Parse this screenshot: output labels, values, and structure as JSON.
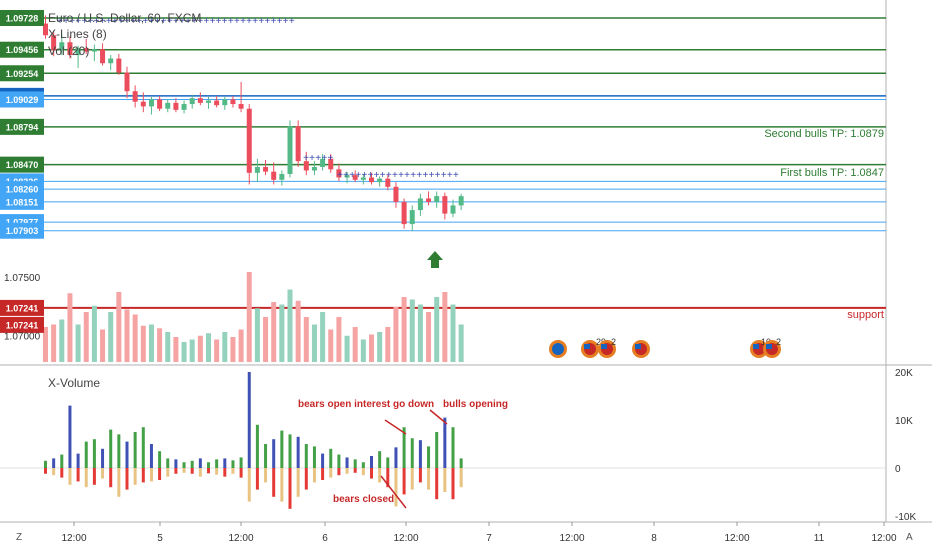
{
  "header": {
    "symbol_title": "Euro / U.S. Dollar, 60, FXCM",
    "study_xlines": "X-Lines (8)",
    "study_vol": "Vol (20)"
  },
  "price_axis": {
    "labels": [
      {
        "value": "1.09728",
        "color": "#2e7d32"
      },
      {
        "value": "1.09456",
        "color": "#2e7d32"
      },
      {
        "value": "1.09254",
        "color": "#2e7d32"
      },
      {
        "value": "1.09060",
        "color": "#1565c0"
      },
      {
        "value": "1.09029",
        "color": "#42a5f5"
      },
      {
        "value": "1.08794",
        "color": "#2e7d32"
      },
      {
        "value": "1.08470",
        "color": "#2e7d32"
      },
      {
        "value": "1.08326",
        "color": "#42a5f5"
      },
      {
        "value": "1.08260",
        "color": "#42a5f5"
      },
      {
        "value": "1.08151",
        "color": "#42a5f5"
      },
      {
        "value": "1.07977",
        "color": "#42a5f5"
      },
      {
        "value": "1.07903",
        "color": "#42a5f5"
      },
      {
        "value": "1.07500",
        "color": ""
      },
      {
        "value": "1.07241",
        "color": "#c62828"
      },
      {
        "value": "1.07241",
        "color": "#c62828"
      },
      {
        "value": "1.07000",
        "color": ""
      }
    ]
  },
  "annotations": {
    "second_bulls_tp": "Second bulls TP: 1.0879",
    "first_bulls_tp": "First bulls TP: 1.0847",
    "support": "support",
    "bears_open_interest": "bears open interest go down",
    "bulls_opening": "bulls opening",
    "bears_closed": "bears closed"
  },
  "events": [
    {
      "label": ""
    },
    {
      "label": "29"
    },
    {
      "label": "2"
    },
    {
      "label": ""
    },
    {
      "label": "10"
    },
    {
      "label": "2"
    }
  ],
  "xvolume": {
    "title": "X-Volume",
    "axis_labels": [
      "20K",
      "10K",
      "0",
      "-10K"
    ]
  },
  "time_axis": {
    "labels": [
      "12:00",
      "5",
      "12:00",
      "6",
      "12:00",
      "7",
      "12:00",
      "8",
      "12:00",
      "11",
      "12:00"
    ]
  },
  "corner": {
    "left": "Z",
    "right": "A"
  },
  "colors": {
    "bull": "#53b987",
    "bear": "#eb4d5c",
    "green_line": "#2e7d32",
    "blue_line": "#1565c0",
    "light_blue_line": "#42a5f5",
    "support_line": "#c62828",
    "vol_bull": "#94d2bd",
    "vol_bear": "#f5a3a3",
    "xv_blue": "#3f51b5",
    "xv_green": "#43a047",
    "xv_red": "#e53935",
    "xv_tan": "#e8c382",
    "annotation_red": "#c62828"
  },
  "chart_data": {
    "type": "candlestick",
    "series": [
      {
        "name": "Euro / U.S. Dollar, 60, FXCM",
        "ohlc": [
          [
            1.0968,
            1.0975,
            1.0955,
            1.0958
          ],
          [
            1.0958,
            1.0962,
            1.094,
            1.0945
          ],
          [
            1.0945,
            1.0958,
            1.0941,
            1.0952
          ],
          [
            1.0952,
            1.0957,
            1.0938,
            1.0941
          ],
          [
            1.0941,
            1.0949,
            1.093,
            1.0947
          ],
          [
            1.0947,
            1.0955,
            1.0942,
            1.0944
          ],
          [
            1.0944,
            1.095,
            1.0936,
            1.0946
          ],
          [
            1.0946,
            1.0951,
            1.0932,
            1.0934
          ],
          [
            1.0934,
            1.0941,
            1.0928,
            1.0938
          ],
          [
            1.0938,
            1.0942,
            1.0924,
            1.0926
          ],
          [
            1.0926,
            1.0931,
            1.0904,
            1.091
          ],
          [
            1.091,
            1.0915,
            1.0896,
            1.0901
          ],
          [
            1.0901,
            1.0909,
            1.0892,
            1.0897
          ],
          [
            1.0897,
            1.0905,
            1.089,
            1.0903
          ],
          [
            1.0903,
            1.0906,
            1.0893,
            1.0895
          ],
          [
            1.0895,
            1.0903,
            1.0892,
            1.09
          ],
          [
            1.09,
            1.0904,
            1.0892,
            1.0894
          ],
          [
            1.0894,
            1.0902,
            1.0891,
            1.0899
          ],
          [
            1.0899,
            1.0907,
            1.0895,
            1.0904
          ],
          [
            1.0904,
            1.0909,
            1.0898,
            1.09
          ],
          [
            1.09,
            1.0905,
            1.0895,
            1.0902
          ],
          [
            1.0902,
            1.0906,
            1.0896,
            1.0898
          ],
          [
            1.0898,
            1.0905,
            1.0894,
            1.0903
          ],
          [
            1.0903,
            1.0906,
            1.0896,
            1.0899
          ],
          [
            1.0899,
            1.0918,
            1.0892,
            1.0895
          ],
          [
            1.0895,
            1.0899,
            1.083,
            1.084
          ],
          [
            1.084,
            1.0852,
            1.0832,
            1.0845
          ],
          [
            1.0845,
            1.0851,
            1.0838,
            1.0841
          ],
          [
            1.0841,
            1.0849,
            1.083,
            1.0834
          ],
          [
            1.0834,
            1.0842,
            1.0829,
            1.0839
          ],
          [
            1.0839,
            1.0885,
            1.0836,
            1.088
          ],
          [
            1.088,
            1.0885,
            1.0845,
            1.085
          ],
          [
            1.085,
            1.0858,
            1.0838,
            1.0842
          ],
          [
            1.0842,
            1.085,
            1.0838,
            1.0845
          ],
          [
            1.0845,
            1.0856,
            1.0842,
            1.0852
          ],
          [
            1.0852,
            1.0856,
            1.084,
            1.0843
          ],
          [
            1.0843,
            1.0848,
            1.0833,
            1.0836
          ],
          [
            1.0836,
            1.0841,
            1.0831,
            1.0838
          ],
          [
            1.0838,
            1.0842,
            1.0832,
            1.0834
          ],
          [
            1.0834,
            1.0839,
            1.083,
            1.0836
          ],
          [
            1.0836,
            1.084,
            1.083,
            1.0832
          ],
          [
            1.0832,
            1.0837,
            1.0828,
            1.0835
          ],
          [
            1.0835,
            1.0838,
            1.0825,
            1.0828
          ],
          [
            1.0828,
            1.0832,
            1.081,
            1.0815
          ],
          [
            1.0815,
            1.0818,
            1.0792,
            1.0796
          ],
          [
            1.0796,
            1.0812,
            1.079,
            1.0808
          ],
          [
            1.0808,
            1.0822,
            1.0803,
            1.0818
          ],
          [
            1.0818,
            1.0824,
            1.0812,
            1.0815
          ],
          [
            1.0815,
            1.0824,
            1.081,
            1.082
          ],
          [
            1.082,
            1.0823,
            1.08,
            1.0805
          ],
          [
            1.0805,
            1.0817,
            1.0802,
            1.0812
          ],
          [
            1.0812,
            1.0822,
            1.0808,
            1.082
          ]
        ]
      }
    ],
    "price_range": [
      1.0695,
      1.0985
    ],
    "ticks": [
      "12:00",
      "5",
      "12:00",
      "6",
      "12:00",
      "7",
      "12:00",
      "8",
      "12:00",
      "11",
      "12:00"
    ],
    "volume": [
      28,
      30,
      34,
      55,
      30,
      40,
      45,
      26,
      40,
      56,
      42,
      38,
      29,
      30,
      27,
      24,
      20,
      16,
      18,
      21,
      23,
      18,
      24,
      20,
      26,
      72,
      43,
      36,
      48,
      46,
      58,
      49,
      36,
      30,
      40,
      26,
      36,
      21,
      28,
      18,
      22,
      24,
      28,
      44,
      52,
      50,
      46,
      40,
      52,
      56,
      46,
      30
    ],
    "xvolume_pos": [
      1.5,
      2,
      2.8,
      13,
      3,
      5.5,
      6,
      4,
      8,
      7,
      5.5,
      7.5,
      8.5,
      5,
      3.5,
      2,
      1.8,
      1.2,
      1.5,
      2,
      1.2,
      1.8,
      2,
      1.6,
      2.2,
      20,
      9,
      5,
      6,
      7.8,
      7,
      6.5,
      5,
      4.5,
      3,
      4,
      2.8,
      2.2,
      1.8,
      1.2,
      2.5,
      3.5,
      2.2,
      4.3,
      8.5,
      6.2,
      5.8,
      4.5,
      7.5,
      10.5,
      8.5,
      2
    ],
    "xvolume_neg": [
      1.2,
      1.5,
      2,
      3.5,
      2.8,
      4,
      3.5,
      2.2,
      4,
      6,
      4.5,
      3.5,
      3,
      2.8,
      2.5,
      1.8,
      1.2,
      1,
      1.2,
      1.8,
      1.1,
      1.4,
      1.8,
      1.2,
      2,
      7,
      4.5,
      3,
      6,
      7,
      8.5,
      6,
      4.5,
      3,
      2.5,
      2,
      1.5,
      1.2,
      1,
      1.5,
      2.2,
      3,
      4,
      8,
      5.5,
      4.5,
      3,
      4.5,
      6.5,
      5,
      6.5,
      4
    ],
    "xvolume_range": [
      -10500,
      20500
    ]
  }
}
